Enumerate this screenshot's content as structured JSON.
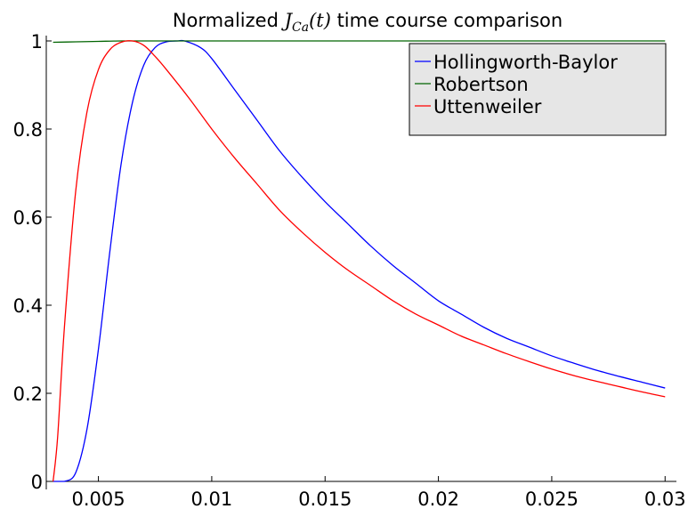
{
  "chart_data": {
    "type": "line",
    "title": {
      "prefix": "Normalized ",
      "math_main": "J",
      "math_sub": "Ca",
      "math_arg": "(t)",
      "suffix": " time course comparison"
    },
    "xlabel": "",
    "ylabel": "",
    "xlim": [
      0.0027,
      0.0305
    ],
    "ylim": [
      0,
      1
    ],
    "xticks": [
      0.005,
      0.01,
      0.015,
      0.02,
      0.025,
      0.03
    ],
    "xtick_labels": [
      "0.005",
      "0.01",
      "0.015",
      "0.02",
      "0.025",
      "0.03"
    ],
    "yticks": [
      0,
      0.2,
      0.4,
      0.6,
      0.8,
      1
    ],
    "ytick_labels": [
      "0",
      "0.2",
      "0.4",
      "0.6",
      "0.8",
      "1"
    ],
    "grid": false,
    "legend_position": "top-right",
    "series": [
      {
        "name": "Hollingworth-Baylor",
        "color": "#0000ff",
        "x": [
          0.003,
          0.0035,
          0.004,
          0.0045,
          0.005,
          0.0055,
          0.006,
          0.0065,
          0.007,
          0.0075,
          0.008,
          0.0085,
          0.0088,
          0.0095,
          0.01,
          0.011,
          0.012,
          0.013,
          0.014,
          0.015,
          0.016,
          0.017,
          0.018,
          0.019,
          0.02,
          0.021,
          0.022,
          0.023,
          0.024,
          0.025,
          0.026,
          0.027,
          0.028,
          0.029,
          0.03
        ],
        "y": [
          0.0,
          0.0,
          0.02,
          0.12,
          0.3,
          0.52,
          0.72,
          0.86,
          0.945,
          0.985,
          0.998,
          1.0,
          1.0,
          0.985,
          0.96,
          0.89,
          0.82,
          0.75,
          0.69,
          0.635,
          0.585,
          0.535,
          0.49,
          0.45,
          0.41,
          0.38,
          0.35,
          0.325,
          0.305,
          0.285,
          0.268,
          0.252,
          0.238,
          0.225,
          0.212
        ]
      },
      {
        "name": "Robertson",
        "color": "#006400",
        "x": [
          0.003,
          0.004,
          0.005,
          0.006,
          0.007,
          0.008,
          0.009,
          0.01,
          0.012,
          0.015,
          0.02,
          0.025,
          0.03
        ],
        "y": [
          0.997,
          0.998,
          0.999,
          1.0,
          1.0,
          1.0,
          1.0,
          1.0,
          1.0,
          1.0,
          1.0,
          1.0,
          1.0
        ]
      },
      {
        "name": "Uttenweiler",
        "color": "#ff0000",
        "x": [
          0.003,
          0.0032,
          0.0035,
          0.004,
          0.0045,
          0.005,
          0.0055,
          0.006,
          0.0065,
          0.007,
          0.0075,
          0.008,
          0.009,
          0.01,
          0.011,
          0.012,
          0.013,
          0.014,
          0.015,
          0.016,
          0.017,
          0.018,
          0.019,
          0.02,
          0.021,
          0.022,
          0.023,
          0.024,
          0.025,
          0.026,
          0.027,
          0.028,
          0.029,
          0.03
        ],
        "y": [
          0.0,
          0.1,
          0.35,
          0.66,
          0.84,
          0.935,
          0.98,
          0.997,
          1.0,
          0.99,
          0.965,
          0.935,
          0.87,
          0.8,
          0.735,
          0.675,
          0.615,
          0.565,
          0.52,
          0.48,
          0.445,
          0.41,
          0.38,
          0.355,
          0.33,
          0.31,
          0.29,
          0.272,
          0.255,
          0.24,
          0.227,
          0.215,
          0.203,
          0.192
        ]
      }
    ]
  },
  "legend": {
    "background": "#e6e6e6",
    "border": "#000000"
  }
}
